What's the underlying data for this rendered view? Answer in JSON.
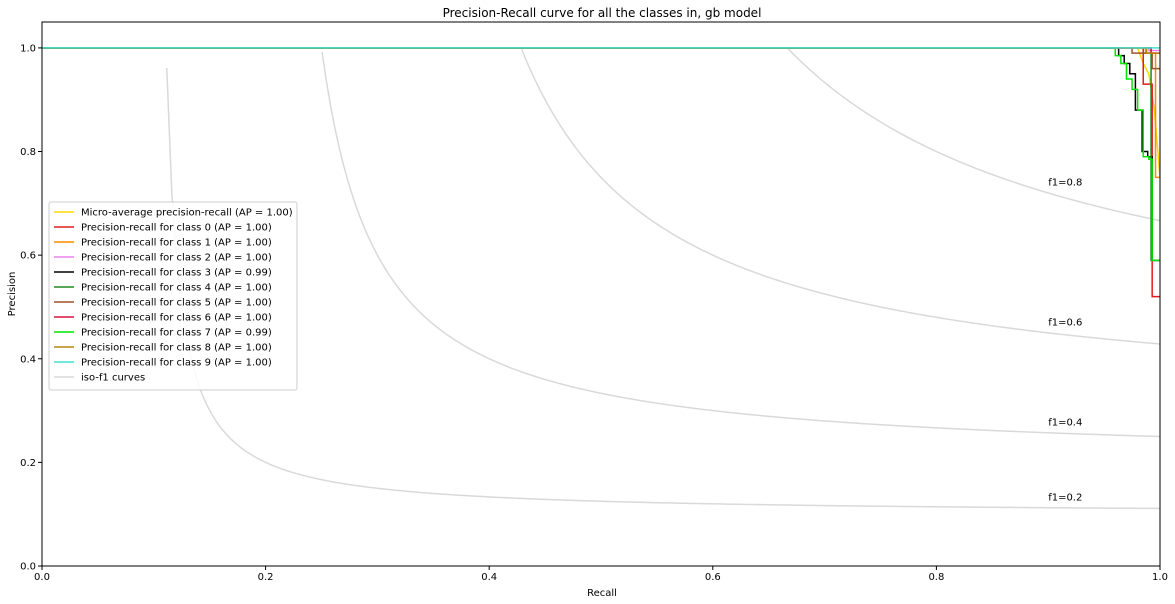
{
  "chart_data": {
    "type": "line",
    "title": "Precision-Recall curve for all the classes in, gb model",
    "xlabel": "Recall",
    "ylabel": "Precision",
    "xlim": [
      0.0,
      1.0
    ],
    "ylim": [
      0.0,
      1.05
    ],
    "x_ticks": [
      "0.0",
      "0.2",
      "0.4",
      "0.6",
      "0.8",
      "1.0"
    ],
    "y_ticks": [
      "0.0",
      "0.2",
      "0.4",
      "0.6",
      "0.8",
      "1.0"
    ],
    "grid": false,
    "legend_position": "center-left",
    "series": [
      {
        "name": "Micro-average precision-recall (AP = 1.00)",
        "color": "#ffd700",
        "x": [
          0,
          0.98,
          0.985,
          0.99,
          0.995,
          1.0
        ],
        "y": [
          1.0,
          1.0,
          0.97,
          0.95,
          0.88,
          0.75
        ]
      },
      {
        "name": "Precision-recall for class 0 (AP = 1.00)",
        "color": "#e41a1c",
        "x": [
          0,
          0.985,
          0.985,
          0.993,
          0.993,
          0.998,
          0.998,
          1.0
        ],
        "y": [
          1.0,
          1.0,
          0.93,
          0.93,
          0.52,
          0.52,
          0.52,
          0.52
        ]
      },
      {
        "name": "Precision-recall for class 1 (AP = 1.00)",
        "color": "#ff8c00",
        "x": [
          0,
          0.987,
          0.987,
          0.996,
          0.996,
          1.0
        ],
        "y": [
          1.0,
          1.0,
          0.99,
          0.99,
          0.75,
          0.75
        ]
      },
      {
        "name": "Precision-recall for class 2 (AP = 1.00)",
        "color": "#ee82ee",
        "x": [
          0,
          0.99,
          0.99,
          1.0
        ],
        "y": [
          1.0,
          1.0,
          0.995,
          0.995
        ]
      },
      {
        "name": "Precision-recall for class 3 (AP = 0.99)",
        "color": "#000000",
        "x": [
          0,
          0.963,
          0.963,
          0.968,
          0.968,
          0.973,
          0.973,
          0.978,
          0.978,
          0.984,
          0.984,
          0.989,
          0.989,
          0.993,
          0.993,
          1.0
        ],
        "y": [
          1.0,
          1.0,
          0.985,
          0.985,
          0.97,
          0.97,
          0.95,
          0.95,
          0.88,
          0.88,
          0.8,
          0.8,
          0.79,
          0.79,
          0.59,
          0.59
        ]
      },
      {
        "name": "Precision-recall for class 4 (AP = 1.00)",
        "color": "#228b22",
        "x": [
          0,
          0.992,
          0.992,
          1.0
        ],
        "y": [
          1.0,
          1.0,
          0.59,
          0.59
        ]
      },
      {
        "name": "Precision-recall for class 5 (AP = 1.00)",
        "color": "#a0522d",
        "x": [
          0,
          0.975,
          0.975,
          0.993,
          0.993,
          1.0
        ],
        "y": [
          1.0,
          1.0,
          0.99,
          0.99,
          0.96,
          0.96
        ]
      },
      {
        "name": "Precision-recall for class 6 (AP = 1.00)",
        "color": "#dc143c",
        "x": [
          0,
          0.992,
          0.992,
          1.0
        ],
        "y": [
          1.0,
          1.0,
          0.99,
          0.99
        ]
      },
      {
        "name": "Precision-recall for class 7 (AP = 0.99)",
        "color": "#00e600",
        "x": [
          0,
          0.96,
          0.96,
          0.965,
          0.965,
          0.97,
          0.97,
          0.975,
          0.975,
          0.98,
          0.98,
          0.985,
          0.985,
          0.99,
          0.99,
          0.993,
          0.993,
          1.0
        ],
        "y": [
          1.0,
          1.0,
          0.985,
          0.985,
          0.97,
          0.97,
          0.94,
          0.94,
          0.92,
          0.92,
          0.88,
          0.88,
          0.79,
          0.79,
          0.785,
          0.785,
          0.59,
          0.59
        ]
      },
      {
        "name": "Precision-recall for class 8 (AP = 1.00)",
        "color": "#b8860b",
        "x": [
          0,
          0.988,
          0.988,
          1.0
        ],
        "y": [
          1.0,
          1.0,
          0.99,
          0.99
        ]
      },
      {
        "name": "Precision-recall for class 9 (AP = 1.00)",
        "color": "#40e0d0",
        "x": [
          0,
          1.0
        ],
        "y": [
          1.0,
          1.0
        ]
      }
    ],
    "iso_f1": {
      "legend": "iso-f1 curves",
      "color": "#d9d9d9",
      "levels": [
        0.2,
        0.4,
        0.6,
        0.8
      ],
      "labels": [
        "f1=0.2",
        "f1=0.4",
        "f1=0.6",
        "f1=0.8"
      ]
    }
  }
}
